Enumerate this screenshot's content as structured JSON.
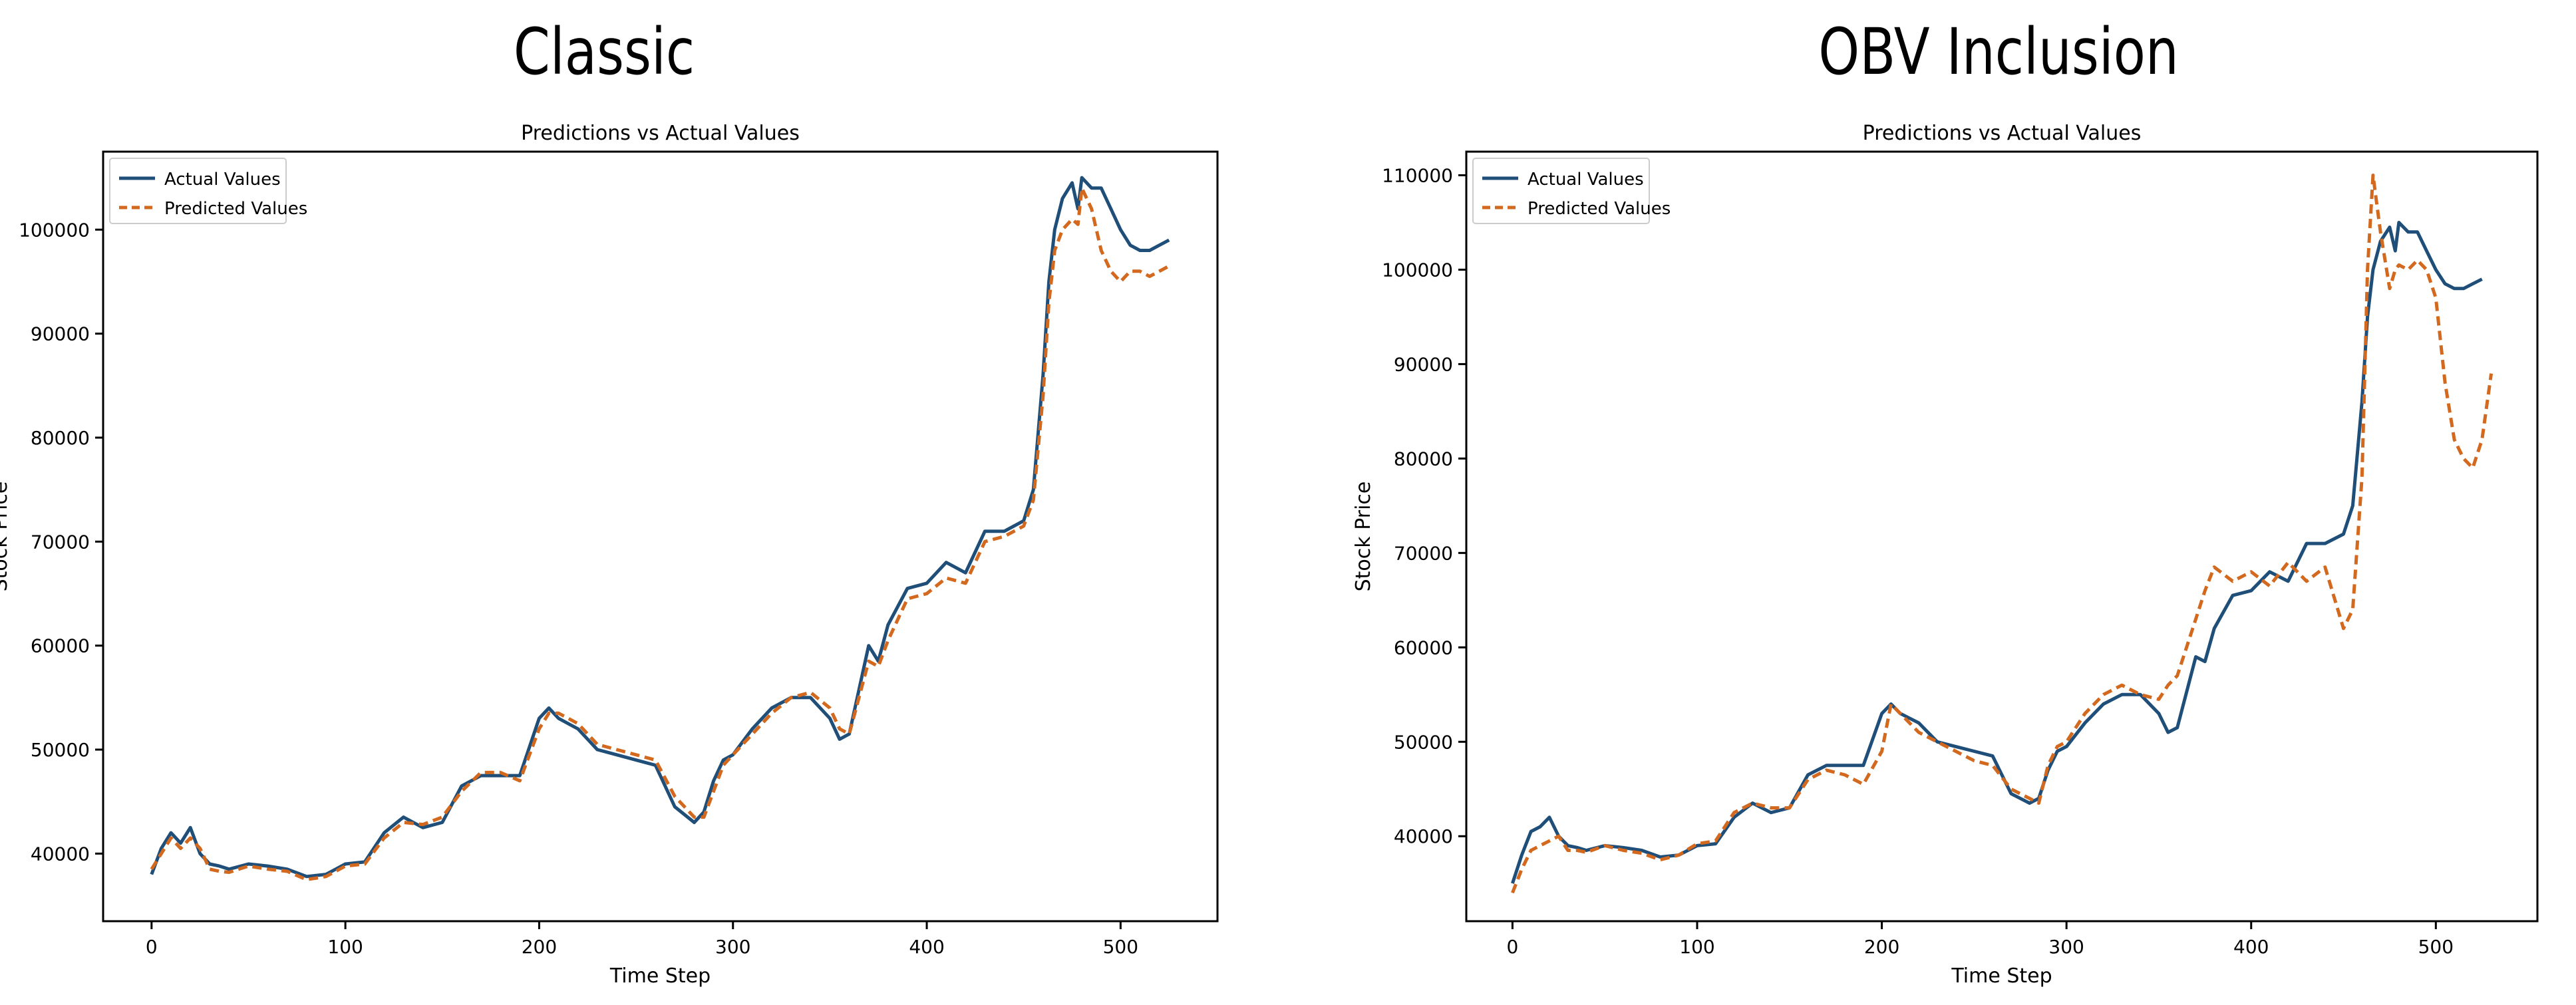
{
  "chart_data": [
    {
      "panel_title": "Classic",
      "type": "line",
      "title": "Predictions vs Actual Values",
      "xlabel": "Time Step",
      "ylabel": "Stock Price",
      "xlim": [
        -25,
        550
      ],
      "ylim": [
        33500,
        107500
      ],
      "xticks": [
        0,
        100,
        200,
        300,
        400,
        500
      ],
      "yticks": [
        40000,
        50000,
        60000,
        70000,
        80000,
        90000,
        100000
      ],
      "grid": false,
      "legend_position": "top-left",
      "series": [
        {
          "name": "Actual Values",
          "color": "#1f4e79",
          "style": "solid",
          "x": [
            0,
            5,
            10,
            15,
            20,
            25,
            30,
            35,
            40,
            50,
            60,
            70,
            80,
            90,
            100,
            110,
            120,
            130,
            140,
            150,
            160,
            170,
            180,
            190,
            200,
            205,
            210,
            215,
            220,
            230,
            240,
            250,
            260,
            270,
            280,
            285,
            290,
            295,
            300,
            310,
            320,
            330,
            340,
            350,
            355,
            360,
            370,
            375,
            380,
            390,
            400,
            410,
            420,
            430,
            440,
            450,
            455,
            460,
            463,
            466,
            470,
            475,
            478,
            480,
            485,
            490,
            495,
            500,
            505,
            510,
            515,
            520,
            525
          ],
          "y": [
            38000,
            40500,
            42000,
            41000,
            42500,
            40000,
            39000,
            38800,
            38500,
            39000,
            38800,
            38500,
            37800,
            38000,
            39000,
            39200,
            42000,
            43500,
            42500,
            43000,
            46500,
            47500,
            47500,
            47500,
            53000,
            54000,
            53000,
            52500,
            52000,
            50000,
            49500,
            49000,
            48500,
            44500,
            43000,
            44000,
            47000,
            49000,
            49500,
            52000,
            54000,
            55000,
            55000,
            53000,
            51000,
            51500,
            60000,
            58500,
            62000,
            65500,
            66000,
            68000,
            67000,
            71000,
            71000,
            72000,
            75000,
            86000,
            95000,
            100000,
            103000,
            104500,
            102000,
            105000,
            104000,
            104000,
            102000,
            100000,
            98500,
            98000,
            98000,
            98500,
            99000
          ]
        },
        {
          "name": "Predicted Values",
          "color": "#d2691e",
          "style": "dashed",
          "x": [
            0,
            5,
            10,
            15,
            20,
            25,
            30,
            35,
            40,
            50,
            60,
            70,
            80,
            90,
            100,
            110,
            120,
            130,
            140,
            150,
            160,
            170,
            180,
            190,
            200,
            205,
            210,
            215,
            220,
            230,
            240,
            250,
            260,
            270,
            280,
            285,
            290,
            295,
            300,
            310,
            320,
            330,
            340,
            350,
            355,
            360,
            370,
            375,
            380,
            390,
            400,
            410,
            420,
            430,
            440,
            450,
            455,
            460,
            463,
            466,
            470,
            475,
            478,
            480,
            485,
            490,
            495,
            500,
            505,
            510,
            515,
            520,
            525
          ],
          "y": [
            38500,
            40000,
            41500,
            40500,
            41500,
            40500,
            38500,
            38300,
            38200,
            38800,
            38500,
            38300,
            37500,
            37800,
            38800,
            39000,
            41500,
            43000,
            42800,
            43500,
            46000,
            47800,
            47800,
            47000,
            52000,
            53500,
            53500,
            53000,
            52500,
            50500,
            50000,
            49500,
            49000,
            45500,
            43500,
            43500,
            46000,
            48500,
            49500,
            51500,
            53500,
            55000,
            55500,
            54000,
            52000,
            51500,
            58500,
            58000,
            60500,
            64500,
            65000,
            66500,
            66000,
            70000,
            70500,
            71500,
            74000,
            84000,
            93000,
            98000,
            100000,
            101000,
            100500,
            104000,
            102000,
            98000,
            96000,
            95000,
            96000,
            96000,
            95500,
            96000,
            96500
          ]
        }
      ]
    },
    {
      "panel_title": "OBV Inclusion",
      "type": "line",
      "title": "Predictions vs Actual Values",
      "xlabel": "Time Step",
      "ylabel": "Stock Price",
      "xlim": [
        -25,
        555
      ],
      "ylim": [
        31000,
        112500
      ],
      "xticks": [
        0,
        100,
        200,
        300,
        400,
        500
      ],
      "yticks": [
        40000,
        50000,
        60000,
        70000,
        80000,
        90000,
        100000,
        110000
      ],
      "grid": false,
      "legend_position": "top-left",
      "series": [
        {
          "name": "Actual Values",
          "color": "#1f4e79",
          "style": "solid",
          "x": [
            0,
            5,
            10,
            15,
            20,
            25,
            30,
            35,
            40,
            50,
            60,
            70,
            80,
            90,
            100,
            110,
            120,
            130,
            140,
            150,
            160,
            170,
            180,
            190,
            200,
            205,
            210,
            215,
            220,
            230,
            240,
            250,
            260,
            270,
            280,
            285,
            290,
            295,
            300,
            310,
            320,
            330,
            340,
            350,
            355,
            360,
            370,
            375,
            380,
            390,
            400,
            410,
            420,
            430,
            440,
            450,
            455,
            460,
            463,
            466,
            470,
            475,
            478,
            480,
            485,
            490,
            495,
            500,
            505,
            510,
            515,
            520,
            525
          ],
          "y": [
            35000,
            38000,
            40500,
            41000,
            42000,
            40000,
            39000,
            38800,
            38500,
            39000,
            38800,
            38500,
            37800,
            38000,
            39000,
            39200,
            42000,
            43500,
            42500,
            43000,
            46500,
            47500,
            47500,
            47500,
            53000,
            54000,
            53000,
            52500,
            52000,
            50000,
            49500,
            49000,
            48500,
            44500,
            43500,
            44000,
            47000,
            49000,
            49500,
            52000,
            54000,
            55000,
            55000,
            53000,
            51000,
            51500,
            59000,
            58500,
            62000,
            65500,
            66000,
            68000,
            67000,
            71000,
            71000,
            72000,
            75000,
            86000,
            95000,
            100000,
            103000,
            104500,
            102000,
            105000,
            104000,
            104000,
            102000,
            100000,
            98500,
            98000,
            98000,
            98500,
            99000
          ]
        },
        {
          "name": "Predicted Values",
          "color": "#d2691e",
          "style": "dashed",
          "x": [
            0,
            5,
            10,
            15,
            20,
            25,
            30,
            35,
            40,
            50,
            60,
            70,
            80,
            90,
            100,
            110,
            120,
            130,
            140,
            150,
            160,
            170,
            180,
            190,
            200,
            205,
            210,
            215,
            220,
            230,
            240,
            250,
            260,
            270,
            280,
            285,
            290,
            295,
            300,
            310,
            320,
            330,
            340,
            350,
            355,
            360,
            370,
            375,
            380,
            390,
            400,
            410,
            420,
            430,
            440,
            450,
            455,
            460,
            463,
            466,
            470,
            475,
            478,
            480,
            485,
            490,
            495,
            500,
            505,
            510,
            515,
            520,
            525,
            530
          ],
          "y": [
            34000,
            36500,
            38500,
            39000,
            39500,
            40000,
            38500,
            38500,
            38300,
            39000,
            38500,
            38200,
            37500,
            38000,
            39200,
            39500,
            42500,
            43500,
            43000,
            43000,
            46000,
            47000,
            46500,
            45500,
            49000,
            54000,
            53000,
            52000,
            51000,
            50000,
            49000,
            48000,
            47500,
            45000,
            44000,
            43500,
            47500,
            49500,
            50000,
            53000,
            55000,
            56000,
            55000,
            54500,
            56000,
            57000,
            63000,
            66000,
            68500,
            67000,
            68000,
            66500,
            69000,
            67000,
            68500,
            62000,
            64000,
            78000,
            100000,
            110000,
            104000,
            98000,
            100000,
            100500,
            100000,
            101000,
            100000,
            97000,
            88000,
            82000,
            80000,
            79000,
            82000,
            89000
          ]
        }
      ]
    }
  ]
}
